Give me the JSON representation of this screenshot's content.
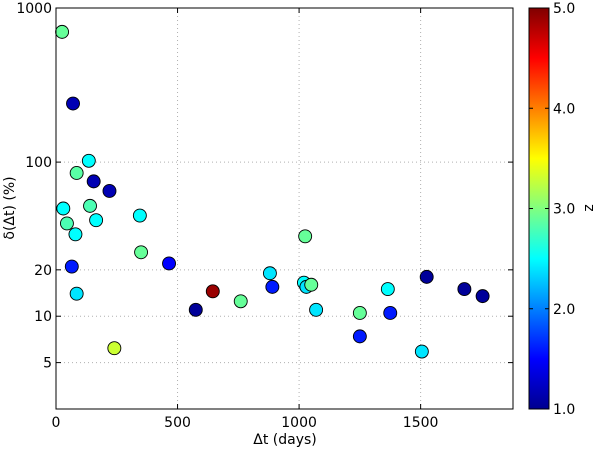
{
  "chart_data": {
    "type": "scatter",
    "xlabel": "Δt (days)",
    "ylabel": "δ(Δt) (%)",
    "xlim": [
      0,
      1880
    ],
    "ylim": [
      2.5,
      1000
    ],
    "yscale": "log",
    "grid": true,
    "x_ticks": [
      0,
      500,
      1000,
      1500
    ],
    "y_ticks": [
      5,
      10,
      20,
      100,
      1000
    ],
    "colorbar": {
      "label": "z",
      "range": [
        1.0,
        5.0
      ],
      "ticks": [
        "1.0",
        "2.0",
        "3.0",
        "4.0",
        "5.0"
      ],
      "colormap": "jet",
      "position": "right"
    },
    "points": [
      {
        "x": 25,
        "y": 700,
        "z": 2.9
      },
      {
        "x": 70,
        "y": 240,
        "z": 1.2
      },
      {
        "x": 135,
        "y": 102,
        "z": 2.5
      },
      {
        "x": 85,
        "y": 85,
        "z": 2.85
      },
      {
        "x": 155,
        "y": 75,
        "z": 1.2
      },
      {
        "x": 220,
        "y": 65,
        "z": 1.2
      },
      {
        "x": 30,
        "y": 50,
        "z": 2.5
      },
      {
        "x": 140,
        "y": 52,
        "z": 2.8
      },
      {
        "x": 345,
        "y": 45,
        "z": 2.5
      },
      {
        "x": 45,
        "y": 40,
        "z": 2.8
      },
      {
        "x": 165,
        "y": 42,
        "z": 2.5
      },
      {
        "x": 80,
        "y": 34,
        "z": 2.5
      },
      {
        "x": 350,
        "y": 26,
        "z": 2.9
      },
      {
        "x": 65,
        "y": 21,
        "z": 1.6
      },
      {
        "x": 465,
        "y": 22,
        "z": 1.5
      },
      {
        "x": 85,
        "y": 14,
        "z": 2.4
      },
      {
        "x": 240,
        "y": 6.2,
        "z": 3.3
      },
      {
        "x": 575,
        "y": 11,
        "z": 1.1
      },
      {
        "x": 645,
        "y": 14.5,
        "z": 4.9
      },
      {
        "x": 760,
        "y": 12.5,
        "z": 2.9
      },
      {
        "x": 880,
        "y": 19,
        "z": 2.4
      },
      {
        "x": 890,
        "y": 15.5,
        "z": 1.6
      },
      {
        "x": 1020,
        "y": 16.5,
        "z": 2.5
      },
      {
        "x": 1030,
        "y": 15.5,
        "z": 2.4
      },
      {
        "x": 1050,
        "y": 16,
        "z": 2.9
      },
      {
        "x": 1025,
        "y": 33,
        "z": 2.9
      },
      {
        "x": 1070,
        "y": 11,
        "z": 2.4
      },
      {
        "x": 1250,
        "y": 10.5,
        "z": 2.9
      },
      {
        "x": 1250,
        "y": 7.4,
        "z": 1.6
      },
      {
        "x": 1365,
        "y": 15,
        "z": 2.5
      },
      {
        "x": 1375,
        "y": 10.5,
        "z": 1.6
      },
      {
        "x": 1505,
        "y": 5.9,
        "z": 2.4
      },
      {
        "x": 1525,
        "y": 18,
        "z": 1.1
      },
      {
        "x": 1680,
        "y": 15,
        "z": 1.1
      },
      {
        "x": 1755,
        "y": 13.5,
        "z": 1.1
      }
    ]
  }
}
